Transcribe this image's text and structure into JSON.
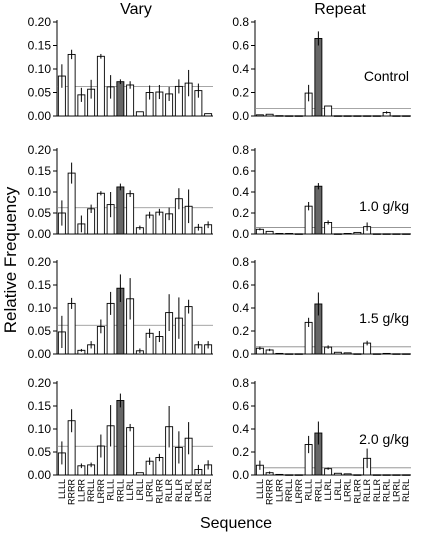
{
  "figure": {
    "column_titles": [
      "Vary",
      "Repeat"
    ],
    "ylabel": "Relative Frequency",
    "xlabel": "Sequence",
    "highlight_color": "#666666",
    "bar_color": "#ffffff",
    "reference_line_color": "#888888"
  },
  "chart_data": [
    {
      "type": "bar",
      "column": "Vary",
      "condition": "Control",
      "ylim": [
        0,
        0.2
      ],
      "yticks": [
        "0.00",
        "0.05",
        "0.10",
        "0.15",
        "0.20"
      ],
      "reference_line": 0.0625,
      "categories": [
        "LLLL",
        "RRRR",
        "LLRR",
        "RRLL",
        "LRRR",
        "RLLL",
        "LLLR",
        "RRRL",
        "LRLL",
        "LRRL",
        "RLLR",
        "RLRR",
        "LRLR",
        "RLRL",
        "LRRL2",
        "RLRL2"
      ],
      "highlight_index": 6,
      "values": [
        0.085,
        0.131,
        0.045,
        0.057,
        0.127,
        0.062,
        0.073,
        0.066,
        0.009,
        0.05,
        0.051,
        0.047,
        0.063,
        0.07,
        0.054,
        0.005
      ],
      "errors": [
        0.025,
        0.01,
        0.015,
        0.02,
        0.005,
        0.025,
        0.005,
        0.008,
        0.002,
        0.015,
        0.015,
        0.015,
        0.015,
        0.028,
        0.015,
        0.002
      ]
    },
    {
      "type": "bar",
      "column": "Repeat",
      "condition": "Control",
      "label": "Control",
      "ylim": [
        0,
        0.8
      ],
      "yticks": [
        "0.0",
        "0.2",
        "0.4",
        "0.6",
        "0.8"
      ],
      "reference_line": 0.0625,
      "highlight_index": 6,
      "values": [
        0.01,
        0.015,
        0.003,
        0.002,
        0.002,
        0.195,
        0.66,
        0.085,
        0.002,
        0.002,
        0.002,
        0.002,
        0.002,
        0.03,
        0.002,
        0.002
      ],
      "errors": [
        0.005,
        0.005,
        0.002,
        0.001,
        0.001,
        0.07,
        0.06,
        0.008,
        0.001,
        0.001,
        0.001,
        0.001,
        0.001,
        0.01,
        0.001,
        0.001
      ]
    },
    {
      "type": "bar",
      "column": "Vary",
      "condition": "1.0 g/kg",
      "ylim": [
        0,
        0.2
      ],
      "yticks": [
        "0.00",
        "0.05",
        "0.10",
        "0.15",
        "0.20"
      ],
      "reference_line": 0.0625,
      "highlight_index": 6,
      "values": [
        0.05,
        0.145,
        0.024,
        0.06,
        0.097,
        0.07,
        0.112,
        0.096,
        0.015,
        0.045,
        0.052,
        0.048,
        0.084,
        0.066,
        0.016,
        0.022
      ],
      "errors": [
        0.03,
        0.025,
        0.02,
        0.01,
        0.005,
        0.03,
        0.008,
        0.008,
        0.005,
        0.008,
        0.008,
        0.015,
        0.025,
        0.04,
        0.008,
        0.008
      ]
    },
    {
      "type": "bar",
      "column": "Repeat",
      "condition": "1.0 g/kg",
      "label": "1.0 g/kg",
      "ylim": [
        0,
        0.8
      ],
      "yticks": [
        "0.0",
        "0.2",
        "0.4",
        "0.6",
        "0.8"
      ],
      "reference_line": 0.0625,
      "highlight_index": 6,
      "values": [
        0.045,
        0.025,
        0.005,
        0.005,
        0.002,
        0.265,
        0.455,
        0.11,
        0.002,
        0.005,
        0.015,
        0.07,
        0.002,
        0.002,
        0.002,
        0.002
      ],
      "errors": [
        0.01,
        0.008,
        0.002,
        0.002,
        0.001,
        0.04,
        0.03,
        0.02,
        0.001,
        0.002,
        0.005,
        0.04,
        0.001,
        0.001,
        0.001,
        0.001
      ]
    },
    {
      "type": "bar",
      "column": "Vary",
      "condition": "1.5 g/kg",
      "ylim": [
        0,
        0.2
      ],
      "yticks": [
        "0.00",
        "0.05",
        "0.10",
        "0.15",
        "0.20"
      ],
      "reference_line": 0.0625,
      "highlight_index": 6,
      "values": [
        0.048,
        0.11,
        0.008,
        0.02,
        0.06,
        0.11,
        0.143,
        0.12,
        0.007,
        0.045,
        0.038,
        0.09,
        0.078,
        0.103,
        0.02,
        0.02
      ],
      "errors": [
        0.035,
        0.012,
        0.003,
        0.008,
        0.015,
        0.025,
        0.03,
        0.045,
        0.005,
        0.01,
        0.012,
        0.04,
        0.045,
        0.015,
        0.008,
        0.008
      ]
    },
    {
      "type": "bar",
      "column": "Repeat",
      "condition": "1.5 g/kg",
      "label": "1.5 g/kg",
      "ylim": [
        0,
        0.8
      ],
      "yticks": [
        "0.0",
        "0.2",
        "0.4",
        "0.6",
        "0.8"
      ],
      "reference_line": 0.0625,
      "highlight_index": 6,
      "values": [
        0.05,
        0.035,
        0.005,
        0.002,
        0.002,
        0.275,
        0.435,
        0.06,
        0.015,
        0.01,
        0.002,
        0.095,
        0.002,
        0.005,
        0.002,
        0.002
      ],
      "errors": [
        0.015,
        0.01,
        0.002,
        0.001,
        0.001,
        0.04,
        0.1,
        0.015,
        0.005,
        0.005,
        0.001,
        0.02,
        0.001,
        0.002,
        0.001,
        0.001
      ]
    },
    {
      "type": "bar",
      "column": "Vary",
      "condition": "2.0 g/kg",
      "ylim": [
        0,
        0.2
      ],
      "yticks": [
        "0.00",
        "0.05",
        "0.10",
        "0.15",
        "0.20"
      ],
      "reference_line": 0.0625,
      "highlight_index": 6,
      "values": [
        0.048,
        0.118,
        0.02,
        0.022,
        0.063,
        0.107,
        0.162,
        0.103,
        0.005,
        0.03,
        0.038,
        0.105,
        0.06,
        0.08,
        0.012,
        0.022
      ],
      "errors": [
        0.025,
        0.025,
        0.005,
        0.005,
        0.025,
        0.045,
        0.015,
        0.008,
        0.002,
        0.008,
        0.008,
        0.045,
        0.035,
        0.035,
        0.01,
        0.01
      ]
    },
    {
      "type": "bar",
      "column": "Repeat",
      "condition": "2.0 g/kg",
      "label": "2.0 g/kg",
      "ylim": [
        0,
        0.8
      ],
      "yticks": [
        "0.0",
        "0.2",
        "0.4",
        "0.6",
        "0.8"
      ],
      "reference_line": 0.0625,
      "highlight_index": 6,
      "values": [
        0.085,
        0.02,
        0.005,
        0.002,
        0.002,
        0.265,
        0.365,
        0.055,
        0.015,
        0.01,
        0.002,
        0.145,
        0.002,
        0.002,
        0.002,
        0.002
      ],
      "errors": [
        0.04,
        0.01,
        0.002,
        0.001,
        0.001,
        0.075,
        0.1,
        0.01,
        0.005,
        0.005,
        0.001,
        0.085,
        0.001,
        0.001,
        0.001,
        0.001
      ]
    }
  ],
  "x_tick_labels": [
    "LLLL",
    "RRRR",
    "LLRR",
    "RRLL",
    "LRRR",
    "RLLL",
    "RRLL",
    "LLRL",
    "LRLL",
    "LRRL",
    "RLRR",
    "RLLR",
    "RLLR",
    "RLRL",
    "LRRL",
    "RLRL"
  ]
}
